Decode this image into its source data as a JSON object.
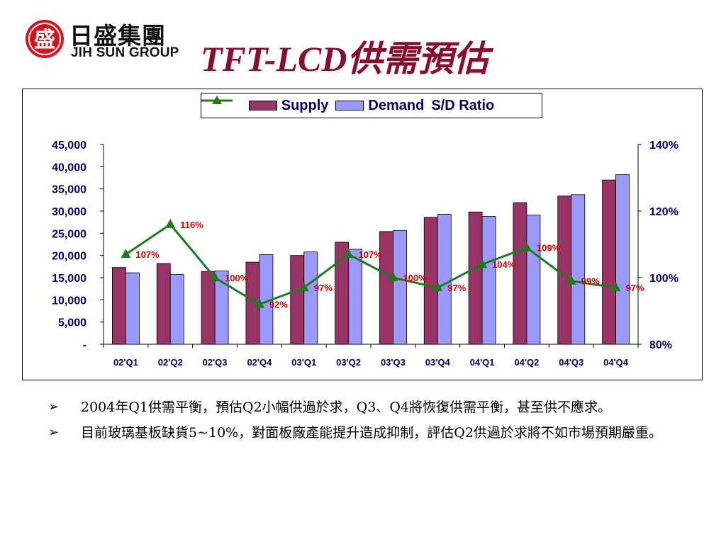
{
  "logo": {
    "mark_char": "盛",
    "name_cn": "日盛集團",
    "name_en": "JIH SUN GROUP"
  },
  "title": "TFT-LCD供需預估",
  "colors": {
    "supply": "#993366",
    "demand": "#9999ff",
    "ratio_line": "#1f7a1f",
    "label_red": "#e00000",
    "axis_text": "#000066",
    "title": "#8b0d2d",
    "logo_red": "#d7121b"
  },
  "chart_data": {
    "type": "bar",
    "categories": [
      "02'Q1",
      "02'Q2",
      "02'Q3",
      "02'Q4",
      "03'Q1",
      "03'Q2",
      "03'Q3",
      "03'Q4",
      "04'Q1",
      "04'Q2",
      "04'Q3",
      "04'Q4"
    ],
    "series": [
      {
        "name": "Supply",
        "type": "bar",
        "axis": "left",
        "values": [
          17300,
          18200,
          16400,
          18500,
          20000,
          23000,
          25400,
          28600,
          29800,
          31900,
          33400,
          37000
        ]
      },
      {
        "name": "Demand",
        "type": "bar",
        "axis": "left",
        "values": [
          16100,
          15700,
          16500,
          20200,
          20800,
          21400,
          25600,
          29300,
          28800,
          29100,
          33700,
          38200
        ]
      },
      {
        "name": "S/D Ratio",
        "type": "line",
        "axis": "right",
        "values": [
          107,
          116,
          100,
          92,
          97,
          107,
          100,
          97,
          104,
          109,
          99,
          97
        ],
        "labels": [
          "107%",
          "116%",
          "100%",
          "92%",
          "97%",
          "107%",
          "100%",
          "97%",
          "104%",
          "109%",
          "99%",
          "97%"
        ]
      }
    ],
    "left_axis": {
      "ylim": [
        0,
        45000
      ],
      "ticks": [
        "-",
        "5,000",
        "10,000",
        "15,000",
        "20,000",
        "25,000",
        "30,000",
        "35,000",
        "40,000",
        "45,000"
      ]
    },
    "right_axis": {
      "ylim": [
        80,
        140
      ],
      "ticks": [
        "80%",
        "100%",
        "120%",
        "140%"
      ]
    },
    "legend": {
      "position": "top-center",
      "entries": [
        "Supply",
        "Demand",
        "S/D Ratio"
      ]
    },
    "grid": false
  },
  "bullets": [
    "2004年Q1供需平衡，預估Q2小幅供過於求，Q3、Q4將恢復供需平衡，甚至供不應求。",
    "目前玻璃基板缺貨5~10%，對面板廠產能提升造成抑制，評估Q2供過於求將不如市場預期嚴重。"
  ],
  "bullet_marker": "➢"
}
